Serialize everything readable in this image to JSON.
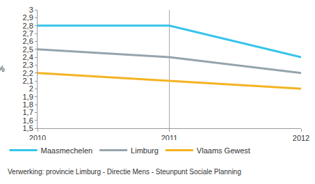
{
  "chart_data": {
    "type": "line",
    "y_label": "%",
    "source": "Verwerking: provincie Limburg - Directie Mens - Steunpunt Sociale Planning",
    "x": [
      2010,
      2011,
      2012
    ],
    "xlim": [
      2010,
      2012
    ],
    "xticks": [
      2010,
      2011,
      2012
    ],
    "ylim": [
      1.5,
      3
    ],
    "yticks": [
      {
        "value": 1.5,
        "label": "1,5"
      },
      {
        "value": 1.6,
        "label": "1,6"
      },
      {
        "value": 1.7,
        "label": "1,7"
      },
      {
        "value": 1.8,
        "label": "1,8"
      },
      {
        "value": 1.9,
        "label": "1,9"
      },
      2,
      {
        "value": 2.1,
        "label": "2,1"
      },
      {
        "value": 2.2,
        "label": "2,2"
      },
      {
        "value": 2.3,
        "label": "2,3"
      },
      {
        "value": 2.4,
        "label": "2,4"
      },
      {
        "value": 2.5,
        "label": "2,5"
      },
      {
        "value": 2.6,
        "label": "2,6"
      },
      {
        "value": 2.7,
        "label": "2,7"
      },
      {
        "value": 2.8,
        "label": "2,8"
      },
      {
        "value": 2.9,
        "label": "2,9"
      },
      3
    ],
    "grid": "x",
    "legend": "bottom",
    "series": [
      {
        "name": "Maasmechelen",
        "color": "#35c4ea",
        "values": [
          2.8,
          2.8,
          2.4
        ]
      },
      {
        "name": "Limburg",
        "color": "#95a4ac",
        "values": [
          2.5,
          2.4,
          2.2
        ]
      },
      {
        "name": "Vlaams Gewest",
        "color": "#f4b321",
        "values": [
          2.2,
          2.1,
          2.0
        ]
      }
    ]
  }
}
